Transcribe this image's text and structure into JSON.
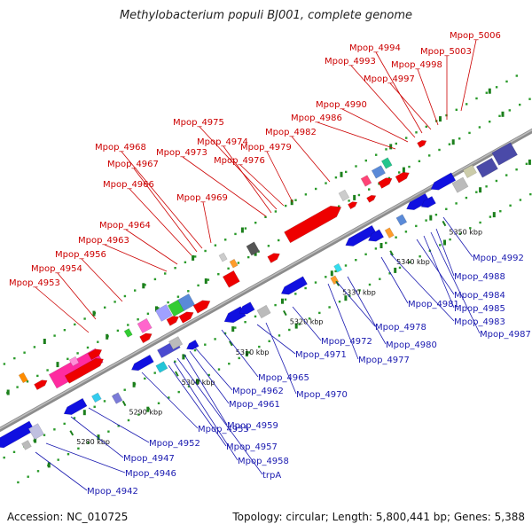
{
  "title": "Methylobacterium populi BJ001, complete genome",
  "footer": {
    "accession": "Accession: NC_010725",
    "summary": "Topology: circular; Length: 5,800,441 bp; Genes: 5,388"
  },
  "colors": {
    "forward_label": "#cc0000",
    "reverse_label": "#1a1ab0",
    "forward_arrow": "#ee0000",
    "reverse_arrow": "#1010e0",
    "backbone": "#8c8c8c",
    "dot": "#2a9a2a"
  },
  "position_ticks": [
    "5280 kbp",
    "5290 kbp",
    "5300 kbp",
    "5310 kbp",
    "5320 kbp",
    "5330 kbp",
    "5340 kbp",
    "5350 kbp"
  ],
  "genes_top": [
    {
      "label": "Mpop_4953"
    },
    {
      "label": "Mpop_4954"
    },
    {
      "label": "Mpop_4956"
    },
    {
      "label": "Mpop_4963"
    },
    {
      "label": "Mpop_4964"
    },
    {
      "label": "Mpop_4966"
    },
    {
      "label": "Mpop_4967"
    },
    {
      "label": "Mpop_4968"
    },
    {
      "label": "Mpop_4969"
    },
    {
      "label": "Mpop_4973"
    },
    {
      "label": "Mpop_4974"
    },
    {
      "label": "Mpop_4975"
    },
    {
      "label": "Mpop_4976"
    },
    {
      "label": "Mpop_4979"
    },
    {
      "label": "Mpop_4982"
    },
    {
      "label": "Mpop_4986"
    },
    {
      "label": "Mpop_4990"
    },
    {
      "label": "Mpop_4993"
    },
    {
      "label": "Mpop_4994"
    },
    {
      "label": "Mpop_4997"
    },
    {
      "label": "Mpop_4998"
    },
    {
      "label": "Mpop_5003"
    },
    {
      "label": "Mpop_5006"
    }
  ],
  "genes_bottom": [
    {
      "label": "Mpop_4942"
    },
    {
      "label": "Mpop_4946"
    },
    {
      "label": "Mpop_4947"
    },
    {
      "label": "Mpop_4952"
    },
    {
      "label": "Mpop_4955"
    },
    {
      "label": "Mpop_4957"
    },
    {
      "label": "Mpop_4958"
    },
    {
      "label": "trpA"
    },
    {
      "label": "Mpop_4959"
    },
    {
      "label": "Mpop_4961"
    },
    {
      "label": "Mpop_4962"
    },
    {
      "label": "Mpop_4965"
    },
    {
      "label": "Mpop_4970"
    },
    {
      "label": "Mpop_4971"
    },
    {
      "label": "Mpop_4972"
    },
    {
      "label": "Mpop_4977"
    },
    {
      "label": "Mpop_4978"
    },
    {
      "label": "Mpop_4980"
    },
    {
      "label": "Mpop_4981"
    },
    {
      "label": "Mpop_4983"
    },
    {
      "label": "Mpop_4984"
    },
    {
      "label": "Mpop_4985"
    },
    {
      "label": "Mpop_4987"
    },
    {
      "label": "Mpop_4988"
    },
    {
      "label": "Mpop_4992"
    }
  ]
}
